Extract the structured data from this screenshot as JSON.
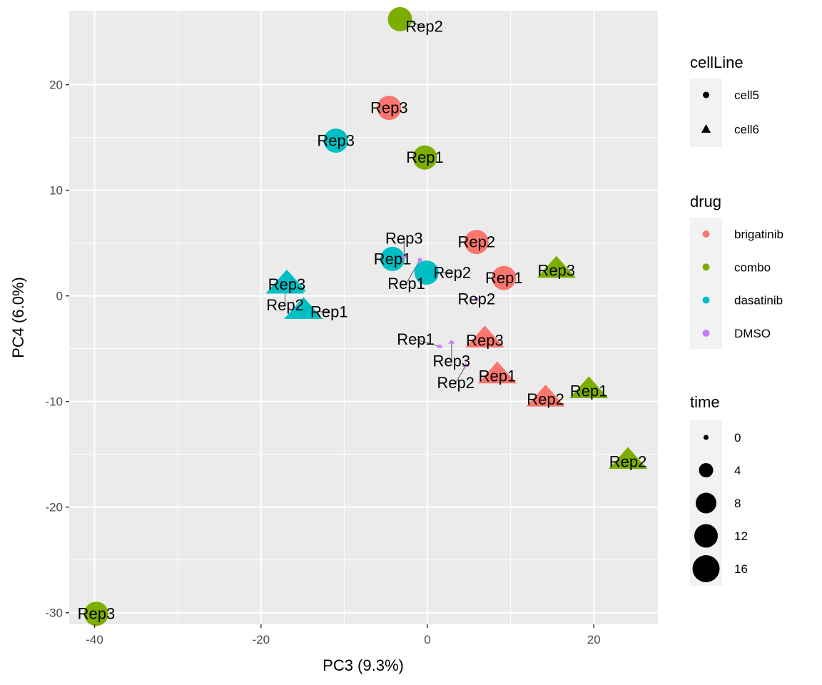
{
  "chart_data": {
    "type": "scatter",
    "xlabel": "PC3 (9.3%)",
    "ylabel": "PC4 (6.0%)",
    "xlim": [
      -43.05,
      27.7
    ],
    "ylim": [
      -31.1,
      27.0
    ],
    "x_ticks": [
      -40,
      -20,
      0,
      20
    ],
    "y_ticks": [
      -30,
      -20,
      -10,
      0,
      10,
      20
    ],
    "grid": true,
    "legend_position": "right",
    "legends": {
      "cellLine": {
        "title": "cellLine",
        "items": [
          {
            "label": "cell5",
            "shape": "circle"
          },
          {
            "label": "cell6",
            "shape": "triangle"
          }
        ]
      },
      "drug": {
        "title": "drug",
        "items": [
          {
            "label": "brigatinib",
            "color": "#F8766D"
          },
          {
            "label": "combo",
            "color": "#7CAE00"
          },
          {
            "label": "dasatinib",
            "color": "#00BFC4"
          },
          {
            "label": "DMSO",
            "color": "#C77CFF"
          }
        ]
      },
      "time": {
        "title": "time",
        "items": [
          {
            "label": "0",
            "value": 0
          },
          {
            "label": "4",
            "value": 4
          },
          {
            "label": "8",
            "value": 8
          },
          {
            "label": "12",
            "value": 12
          },
          {
            "label": "16",
            "value": 16
          }
        ]
      }
    },
    "points": [
      {
        "label": "Rep2",
        "x": -3.3,
        "y": 26.2,
        "drug": "combo",
        "cellLine": "cell5",
        "time": 12
      },
      {
        "label": "Rep3",
        "x": -4.6,
        "y": 17.8,
        "drug": "brigatinib",
        "cellLine": "cell5",
        "time": 12
      },
      {
        "label": "Rep3",
        "x": -11.0,
        "y": 14.7,
        "drug": "dasatinib",
        "cellLine": "cell5",
        "time": 12
      },
      {
        "label": "Rep1",
        "x": -0.3,
        "y": 13.1,
        "drug": "combo",
        "cellLine": "cell5",
        "time": 12
      },
      {
        "label": "Rep2",
        "x": 5.9,
        "y": 5.1,
        "drug": "brigatinib",
        "cellLine": "cell5",
        "time": 12
      },
      {
        "label": "Rep1",
        "x": 9.2,
        "y": 1.7,
        "drug": "brigatinib",
        "cellLine": "cell5",
        "time": 12
      },
      {
        "label": "Rep1",
        "x": -4.2,
        "y": 3.5,
        "drug": "dasatinib",
        "cellLine": "cell5",
        "time": 12
      },
      {
        "label": "Rep2",
        "x": -0.1,
        "y": 2.2,
        "drug": "dasatinib",
        "cellLine": "cell5",
        "time": 12
      },
      {
        "label": "Rep3",
        "x": -39.8,
        "y": -30.1,
        "drug": "combo",
        "cellLine": "cell5",
        "time": 12
      },
      {
        "label": "Rep3",
        "x": -2.8,
        "y": 3.7,
        "drug": "DMSO",
        "cellLine": "cell5",
        "time": 0
      },
      {
        "label": "Rep1",
        "x": -0.9,
        "y": 3.4,
        "drug": "DMSO",
        "cellLine": "cell5",
        "time": 0
      },
      {
        "label": "Rep2",
        "x": 5.9,
        "y": -0.3,
        "drug": "DMSO",
        "cellLine": "cell5",
        "time": 0
      },
      {
        "label": "Rep3",
        "x": -16.9,
        "y": 1.1,
        "drug": "dasatinib",
        "cellLine": "cell6",
        "time": 12
      },
      {
        "label": "Rep2",
        "x": -17.1,
        "y": 0.9,
        "drug": "dasatinib",
        "cellLine": "cell6",
        "time": 12
      },
      {
        "label": "Rep1",
        "x": -14.9,
        "y": -1.5,
        "drug": "dasatinib",
        "cellLine": "cell6",
        "time": 12
      },
      {
        "label": "Rep3",
        "x": 15.5,
        "y": 2.4,
        "drug": "combo",
        "cellLine": "cell6",
        "time": 12
      },
      {
        "label": "Rep3",
        "x": 6.9,
        "y": -4.2,
        "drug": "brigatinib",
        "cellLine": "cell6",
        "time": 12
      },
      {
        "label": "Rep1",
        "x": 8.4,
        "y": -7.6,
        "drug": "brigatinib",
        "cellLine": "cell6",
        "time": 12
      },
      {
        "label": "Rep3",
        "x": 2.9,
        "y": -4.4,
        "drug": "DMSO",
        "cellLine": "cell6",
        "time": 0
      },
      {
        "label": "Rep1",
        "x": 1.5,
        "y": -4.8,
        "drug": "DMSO",
        "cellLine": "cell6",
        "time": 0
      },
      {
        "label": "Rep2",
        "x": 4.6,
        "y": -6.6,
        "drug": "DMSO",
        "cellLine": "cell6",
        "time": 0
      },
      {
        "label": "Rep2",
        "x": 14.2,
        "y": -9.8,
        "drug": "brigatinib",
        "cellLine": "cell6",
        "time": 12
      },
      {
        "label": "Rep1",
        "x": 19.4,
        "y": -9.0,
        "drug": "combo",
        "cellLine": "cell6",
        "time": 12
      },
      {
        "label": "Rep2",
        "x": 24.1,
        "y": -15.7,
        "drug": "combo",
        "cellLine": "cell6",
        "time": 12
      }
    ]
  }
}
